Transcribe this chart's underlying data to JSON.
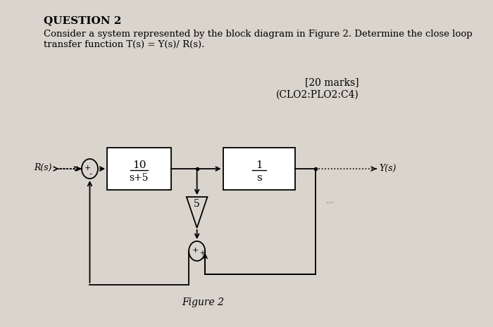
{
  "bg_color": "#d9d4cc",
  "title_text": "QUESTION 2",
  "body_text": "Consider a system represented by the block diagram in Figure 2. Determine the close loop\ntransfer function T(s) = Y(s)/ R(s).",
  "marks_text": "[20 marks]",
  "clo_text": "(CLO2:PLO2:C4)",
  "figure_label": "Figure 2",
  "block1_label_num": "10",
  "block1_label_den": "s+5",
  "block2_label_num": "1",
  "block2_label_den": "s",
  "triangle_label": "5",
  "input_label": "R(s)",
  "output_label": "Y(s)",
  "sumjunc1_sign_top": "+",
  "sumjunc1_sign_bot": "-",
  "sumjunc2_sign_top": "+",
  "sumjunc2_sign_right": "+"
}
